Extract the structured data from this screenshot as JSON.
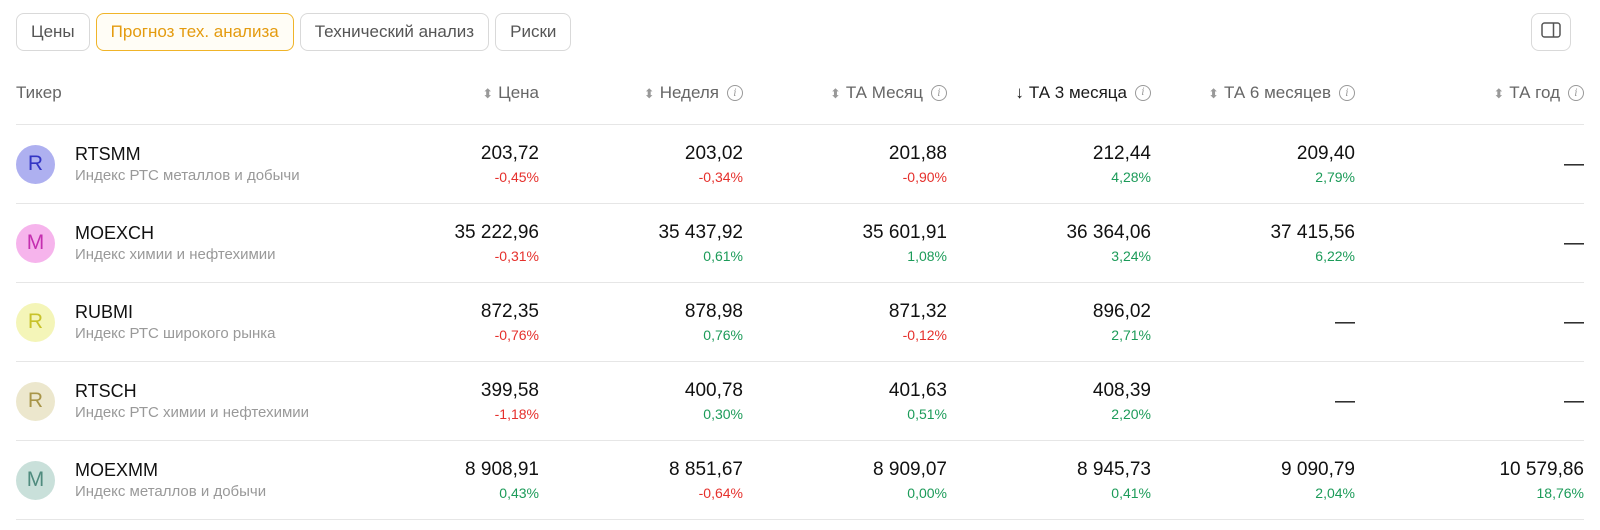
{
  "tabs": [
    {
      "label": "Цены",
      "active": false
    },
    {
      "label": "Прогноз тех. анализа",
      "active": true
    },
    {
      "label": "Технический анализ",
      "active": false
    },
    {
      "label": "Риски",
      "active": false
    }
  ],
  "columns_icon": "sidebar-columns-icon",
  "header": {
    "ticker": "Тикер",
    "price": "Цена",
    "week": "Неделя",
    "month": "ТА Месяц",
    "month3": "ТА 3 месяца",
    "month6": "ТА 6 месяцев",
    "year": "ТА год"
  },
  "sort": {
    "column": "month3",
    "direction": "desc"
  },
  "colors": {
    "negative": "#e5302c",
    "positive": "#1c9b59",
    "accent": "#f0b429"
  },
  "rows": [
    {
      "letter": "R",
      "ticker": "RTSMM",
      "description": "Индекс РТС металлов и добычи",
      "avatar_bg": "#aeb0f0",
      "avatar_fg": "#3335c4",
      "price": {
        "value": "203,72",
        "change": "-0,45%"
      },
      "week": {
        "value": "203,02",
        "change": "-0,34%"
      },
      "month": {
        "value": "201,88",
        "change": "-0,90%"
      },
      "month3": {
        "value": "212,44",
        "change": "4,28%"
      },
      "month6": {
        "value": "209,40",
        "change": "2,79%"
      },
      "year": {
        "value": "—",
        "change": ""
      }
    },
    {
      "letter": "M",
      "ticker": "MOEXCH",
      "description": "Индекс химии и нефтехимии",
      "avatar_bg": "#f6b4ec",
      "avatar_fg": "#c42fb0",
      "price": {
        "value": "35 222,96",
        "change": "-0,31%"
      },
      "week": {
        "value": "35 437,92",
        "change": "0,61%"
      },
      "month": {
        "value": "35 601,91",
        "change": "1,08%"
      },
      "month3": {
        "value": "36 364,06",
        "change": "3,24%"
      },
      "month6": {
        "value": "37 415,56",
        "change": "6,22%"
      },
      "year": {
        "value": "—",
        "change": ""
      }
    },
    {
      "letter": "R",
      "ticker": "RUBMI",
      "description": "Индекс РТС широкого рынка",
      "avatar_bg": "#f4f5b8",
      "avatar_fg": "#c8c22a",
      "price": {
        "value": "872,35",
        "change": "-0,76%"
      },
      "week": {
        "value": "878,98",
        "change": "0,76%"
      },
      "month": {
        "value": "871,32",
        "change": "-0,12%"
      },
      "month3": {
        "value": "896,02",
        "change": "2,71%"
      },
      "month6": {
        "value": "—",
        "change": ""
      },
      "year": {
        "value": "—",
        "change": ""
      }
    },
    {
      "letter": "R",
      "ticker": "RTSCH",
      "description": "Индекс РТС химии и нефтехимии",
      "avatar_bg": "#ece7cd",
      "avatar_fg": "#a89548",
      "price": {
        "value": "399,58",
        "change": "-1,18%"
      },
      "week": {
        "value": "400,78",
        "change": "0,30%"
      },
      "month": {
        "value": "401,63",
        "change": "0,51%"
      },
      "month3": {
        "value": "408,39",
        "change": "2,20%"
      },
      "month6": {
        "value": "—",
        "change": ""
      },
      "year": {
        "value": "—",
        "change": ""
      }
    },
    {
      "letter": "M",
      "ticker": "MOEXMM",
      "description": "Индекс металлов и добычи",
      "avatar_bg": "#c9e0da",
      "avatar_fg": "#4f8b7e",
      "price": {
        "value": "8 908,91",
        "change": "0,43%"
      },
      "week": {
        "value": "8 851,67",
        "change": "-0,64%"
      },
      "month": {
        "value": "8 909,07",
        "change": "0,00%"
      },
      "month3": {
        "value": "8 945,73",
        "change": "0,41%"
      },
      "month6": {
        "value": "9 090,79",
        "change": "2,04%"
      },
      "year": {
        "value": "10 579,86",
        "change": "18,76%"
      }
    }
  ]
}
